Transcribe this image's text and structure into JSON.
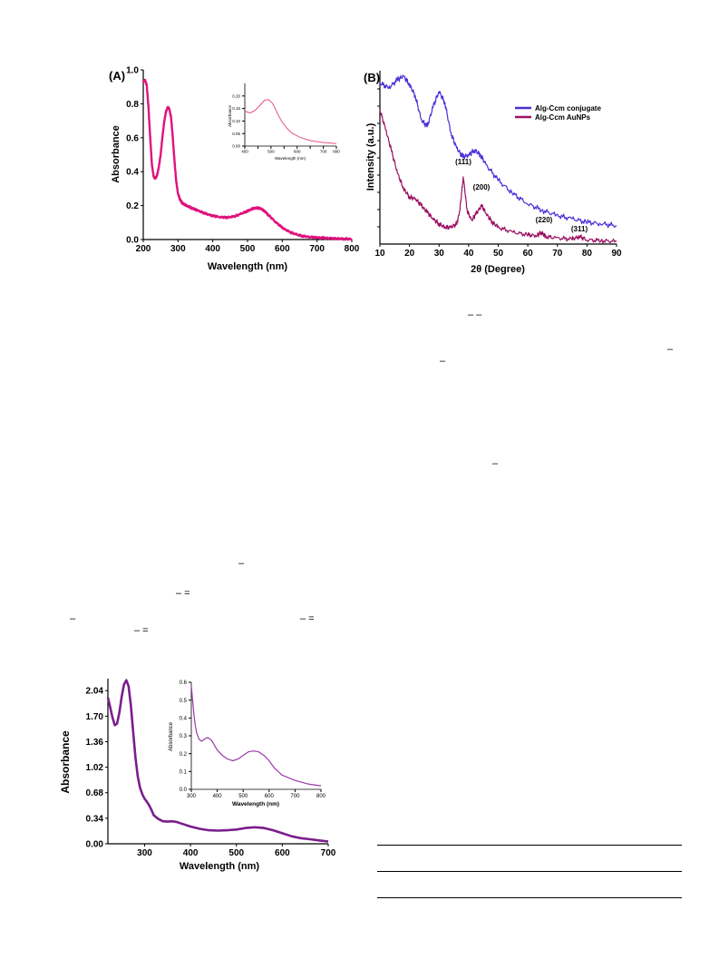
{
  "colors": {
    "panel_a_curve": "#e0127d",
    "panel_a_inset_curve": "#e8508f",
    "conjugate": "#4b2fd8",
    "aunps": "#9b1263",
    "panel_c_curve": "#7a1e8c",
    "panel_c_inset_curve": "#9a3aa8"
  },
  "formula_marks": {
    "m1": "– –",
    "m2": "–",
    "m3": "–",
    "m4": "–",
    "m5": "–",
    "m6": "– =",
    "m7": "–",
    "m8": "– =",
    "m9": "– ="
  },
  "chart_data": [
    {
      "panel": "(A)",
      "type": "line",
      "xlabel": "Wavelength (nm)",
      "ylabel": "Absorbance",
      "xlim": [
        200,
        800
      ],
      "ylim": [
        0,
        1.0
      ],
      "xticks": [
        200,
        300,
        400,
        500,
        600,
        700,
        800
      ],
      "yticks": [
        "0.0",
        "0.2",
        "0.4",
        "0.6",
        "0.8",
        "1.0"
      ],
      "series": [
        {
          "x": [
            200,
            205,
            210,
            215,
            220,
            225,
            230,
            235,
            240,
            245,
            250,
            255,
            260,
            265,
            270,
            275,
            280,
            285,
            290,
            295,
            300,
            305,
            310,
            315,
            320,
            330,
            340,
            350,
            360,
            380,
            400,
            420,
            440,
            460,
            480,
            500,
            510,
            520,
            530,
            540,
            550,
            560,
            580,
            600,
            620,
            640,
            660,
            680,
            700,
            720,
            740,
            760,
            780,
            800
          ],
          "y": [
            0.93,
            0.94,
            0.91,
            0.78,
            0.6,
            0.44,
            0.37,
            0.36,
            0.38,
            0.43,
            0.5,
            0.6,
            0.69,
            0.75,
            0.78,
            0.77,
            0.72,
            0.6,
            0.46,
            0.34,
            0.27,
            0.24,
            0.22,
            0.21,
            0.205,
            0.195,
            0.185,
            0.177,
            0.168,
            0.152,
            0.14,
            0.133,
            0.13,
            0.135,
            0.15,
            0.168,
            0.178,
            0.185,
            0.186,
            0.18,
            0.165,
            0.145,
            0.105,
            0.07,
            0.045,
            0.03,
            0.02,
            0.015,
            0.012,
            0.009,
            0.007,
            0.005,
            0.004,
            0.003
          ]
        }
      ],
      "inset": {
        "type": "line",
        "xlabel": "Wavelength (nm)",
        "ylabel": "Absorbance",
        "xlim": [
          450,
          800
        ],
        "ylim": [
          0,
          0.25
        ],
        "xticks": [
          450,
          500,
          550,
          600,
          650,
          700,
          750,
          800
        ],
        "xticklabels": [
          "450",
          "",
          "500",
          "",
          "600",
          "",
          "700",
          "800"
        ],
        "yticks": [
          "0.00",
          "0.05",
          "0.10",
          "0.15",
          "0.20"
        ],
        "series": [
          {
            "x": [
              450,
              470,
              490,
              510,
              525,
              540,
              555,
              565,
              575,
              590,
              610,
              630,
              660,
              700,
              750,
              800
            ],
            "y": [
              0.14,
              0.132,
              0.143,
              0.165,
              0.183,
              0.186,
              0.172,
              0.152,
              0.13,
              0.1,
              0.072,
              0.052,
              0.035,
              0.022,
              0.014,
              0.01
            ]
          }
        ]
      }
    },
    {
      "panel": "(B)",
      "type": "line",
      "xlabel": "2θ (Degree)",
      "ylabel": "Intensity (a.u.)",
      "xlim": [
        10,
        90
      ],
      "xticks": [
        10,
        20,
        30,
        40,
        50,
        60,
        70,
        80,
        90
      ],
      "yticks": [],
      "legend": "top-right",
      "annotations": [
        "(111)",
        "(200)",
        "(220)",
        "(311)"
      ],
      "series": [
        {
          "name": "Alg-Ccm conjugate",
          "x": [
            10,
            13,
            16,
            18,
            20,
            22,
            24,
            26,
            28,
            30,
            32,
            34,
            36,
            38,
            40,
            42,
            44,
            46,
            50,
            55,
            60,
            65,
            70,
            75,
            80,
            85,
            90
          ],
          "y": [
            0.96,
            0.93,
            0.98,
            1.0,
            0.95,
            0.88,
            0.74,
            0.7,
            0.82,
            0.91,
            0.84,
            0.66,
            0.57,
            0.52,
            0.53,
            0.56,
            0.53,
            0.47,
            0.38,
            0.3,
            0.24,
            0.2,
            0.17,
            0.15,
            0.13,
            0.12,
            0.11
          ]
        },
        {
          "name": "Alg-Ccm AuNPs",
          "x": [
            10,
            12,
            14,
            16,
            18,
            20,
            22,
            24,
            26,
            28,
            30,
            32,
            34,
            36,
            37,
            38.2,
            39.5,
            41,
            42.5,
            44.4,
            46,
            48,
            50,
            55,
            60,
            63,
            64.6,
            66,
            70,
            75,
            77.5,
            80,
            85,
            90
          ],
          "y": [
            0.8,
            0.68,
            0.55,
            0.42,
            0.33,
            0.28,
            0.27,
            0.23,
            0.19,
            0.15,
            0.12,
            0.1,
            0.1,
            0.12,
            0.2,
            0.4,
            0.2,
            0.14,
            0.18,
            0.23,
            0.18,
            0.13,
            0.1,
            0.07,
            0.055,
            0.05,
            0.07,
            0.045,
            0.035,
            0.03,
            0.045,
            0.025,
            0.02,
            0.015
          ]
        }
      ]
    },
    {
      "panel": "",
      "type": "line",
      "xlabel": "Wavelength (nm)",
      "ylabel": "Absorbance",
      "xlim": [
        220,
        700
      ],
      "ylim": [
        0,
        2.2
      ],
      "xticks": [
        300,
        400,
        500,
        600,
        700
      ],
      "yticks": [
        "0.00",
        "0.34",
        "0.68",
        "1.02",
        "1.36",
        "1.70",
        "2.04"
      ],
      "series": [
        {
          "x": [
            220,
            225,
            230,
            235,
            240,
            245,
            250,
            255,
            260,
            265,
            270,
            275,
            280,
            285,
            290,
            295,
            300,
            305,
            310,
            315,
            320,
            330,
            340,
            350,
            360,
            370,
            380,
            400,
            420,
            440,
            460,
            480,
            500,
            520,
            540,
            560,
            580,
            600,
            620,
            640,
            660,
            680,
            700
          ],
          "y": [
            1.95,
            1.82,
            1.68,
            1.58,
            1.6,
            1.75,
            1.96,
            2.12,
            2.18,
            2.1,
            1.85,
            1.5,
            1.15,
            0.9,
            0.75,
            0.66,
            0.6,
            0.56,
            0.51,
            0.45,
            0.38,
            0.33,
            0.3,
            0.295,
            0.3,
            0.29,
            0.27,
            0.23,
            0.2,
            0.18,
            0.175,
            0.18,
            0.19,
            0.21,
            0.22,
            0.21,
            0.18,
            0.14,
            0.1,
            0.075,
            0.06,
            0.045,
            0.03
          ]
        }
      ],
      "inset": {
        "type": "line",
        "xlabel": "Wavelength (nm)",
        "ylabel": "Absorbance",
        "xlim": [
          300,
          800
        ],
        "ylim": [
          0,
          0.6
        ],
        "xticks": [
          300,
          400,
          500,
          600,
          700,
          800
        ],
        "yticks": [
          "0.0",
          "0.1",
          "0.2",
          "0.3",
          "0.4",
          "0.5",
          "0.6"
        ],
        "series": [
          {
            "x": [
              300,
              305,
              310,
              315,
              320,
              330,
              340,
              350,
              360,
              370,
              380,
              400,
              420,
              440,
              460,
              480,
              500,
              520,
              540,
              560,
              580,
              600,
              620,
              650,
              700,
              750,
              800
            ],
            "y": [
              0.58,
              0.5,
              0.42,
              0.36,
              0.32,
              0.28,
              0.27,
              0.28,
              0.29,
              0.285,
              0.27,
              0.22,
              0.19,
              0.17,
              0.16,
              0.17,
              0.19,
              0.21,
              0.215,
              0.21,
              0.19,
              0.16,
              0.12,
              0.08,
              0.05,
              0.03,
              0.02
            ]
          }
        ]
      }
    }
  ]
}
